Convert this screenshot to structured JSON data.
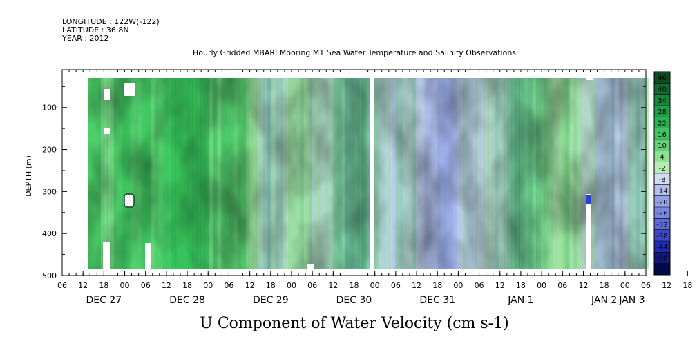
{
  "header": {
    "longitude": "LONGITUDE : 122W(-122)",
    "latitude": "LATITUDE : 36.8N",
    "year": "YEAR : 2012",
    "title": "Hourly Gridded MBARI Mooring M1 Sea Water Temperature and Salinity Observations"
  },
  "chart_data": {
    "type": "heatmap",
    "title": "Hourly Gridded MBARI Mooring M1 Sea Water Temperature and Salinity Observations",
    "xlabel": "",
    "ylabel": "DEPTH (m)",
    "variable_label": "U Component of Water Velocity (cm s-1)",
    "y_axis": {
      "range": [
        500,
        10
      ],
      "ticks": [
        100,
        200,
        300,
        400,
        500
      ],
      "inverted": true
    },
    "x_axis": {
      "range_hours": [
        0,
        168
      ],
      "hour_ticks": [
        "06",
        "12",
        "18",
        "00",
        "06",
        "12",
        "18",
        "00",
        "06",
        "12",
        "18",
        "00",
        "06",
        "12",
        "18",
        "00",
        "06",
        "12",
        "18",
        "00",
        "06",
        "12",
        "18",
        "00",
        "06",
        "12",
        "18",
        "00",
        "06",
        "12",
        "18",
        "00",
        "06"
      ],
      "date_labels": [
        {
          "label": "DEC 27",
          "center_hour": 12
        },
        {
          "label": "DEC 28",
          "center_hour": 36
        },
        {
          "label": "DEC 29",
          "center_hour": 60
        },
        {
          "label": "DEC 30",
          "center_hour": 84
        },
        {
          "label": "DEC 31",
          "center_hour": 108
        },
        {
          "label": "JAN 1",
          "center_hour": 132
        },
        {
          "label": "JAN 2",
          "center_hour": 156
        },
        {
          "label": "JAN 3",
          "center_hour": 168
        }
      ]
    },
    "colorbar": {
      "levels": [
        46,
        40,
        34,
        28,
        22,
        16,
        10,
        4,
        -2,
        -8,
        -14,
        -20,
        -26,
        -32,
        -38,
        -44,
        -50
      ],
      "colors": [
        "#0b4d23",
        "#116a30",
        "#18863a",
        "#1f9e45",
        "#28b450",
        "#3fc462",
        "#62d178",
        "#8fdf95",
        "#b8ecb3",
        "#d2dcf1",
        "#b3bfee",
        "#95a1e8",
        "#7c87e0",
        "#5e6ad8",
        "#3c48cc",
        "#1f2bb0",
        "#0f1a7c",
        "#000a4a"
      ]
    },
    "data_gaps": [
      "white vertical strip near DEC 31 00",
      "white patches near DEC 27 18",
      "white patch near JAN 2 12"
    ]
  }
}
